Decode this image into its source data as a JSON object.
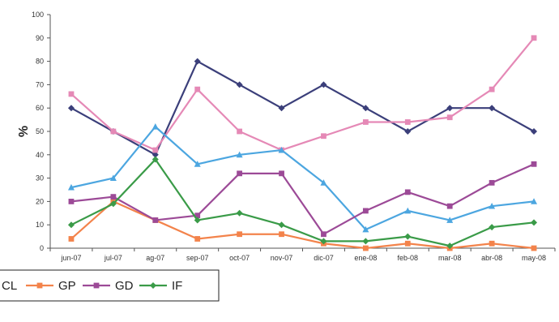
{
  "chart_data": {
    "type": "line",
    "title": "",
    "xlabel": "",
    "ylabel": "%",
    "ylim": [
      0,
      100
    ],
    "yticks": [
      "0",
      "10",
      "20",
      "30",
      "40",
      "50",
      "60",
      "70",
      "80",
      "90",
      "100"
    ],
    "grid": false,
    "legend_position": "bottom",
    "categories": [
      "jun-07",
      "jul-07",
      "ag-07",
      "sep-07",
      "oct-07",
      "nov-07",
      "dic-07",
      "ene-08",
      "feb-08",
      "mar-08",
      "abr-08",
      "may-08"
    ],
    "series": [
      {
        "name": "",
        "color": "#3b3f7a",
        "marker": "diamond",
        "values": [
          60,
          50,
          40,
          80,
          70,
          60,
          70,
          60,
          50,
          60,
          60,
          50
        ]
      },
      {
        "name": "",
        "color": "#e589b6",
        "marker": "square",
        "values": [
          66,
          50,
          42,
          68,
          50,
          42,
          48,
          54,
          54,
          56,
          68,
          90
        ]
      },
      {
        "name": "CL",
        "color": "#4ca6e0",
        "marker": "triangle",
        "values": [
          26,
          30,
          52,
          36,
          40,
          42,
          28,
          8,
          16,
          12,
          18,
          20
        ]
      },
      {
        "name": "GP",
        "color": "#f3834b",
        "marker": "square",
        "values": [
          4,
          20,
          12,
          4,
          6,
          6,
          2,
          0,
          2,
          0,
          2,
          0
        ]
      },
      {
        "name": "GD",
        "color": "#9c4a97",
        "marker": "square",
        "values": [
          20,
          22,
          12,
          14,
          32,
          32,
          6,
          16,
          24,
          18,
          28,
          36
        ]
      },
      {
        "name": "IF",
        "color": "#3a9b48",
        "marker": "diamond",
        "values": [
          10,
          19,
          38,
          12,
          15,
          10,
          3,
          3,
          5,
          1,
          9,
          11
        ]
      }
    ]
  }
}
